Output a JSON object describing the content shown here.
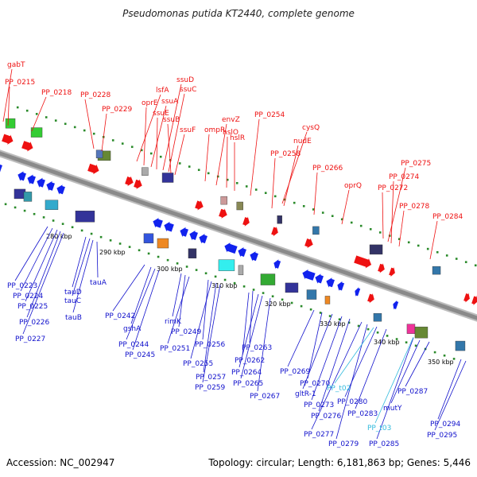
{
  "title": "Pseudomonas putida KT2440, complete genome",
  "footer": {
    "accession": "Accession: NC_002947",
    "topology": "Topology: circular; Length: 6,181,863 bp; Genes: 5,446"
  },
  "colors": {
    "label_top": "#ee1111",
    "label_bottom": "#1111cc",
    "label_alt": "#33bbdd",
    "forward_arrow": "#ee1111",
    "reverse_arrow": "#1122ee",
    "backbone": "#8a8a8a",
    "dot_track": "#2a8a2a"
  },
  "kbp_ticks": [
    "280 kbp",
    "290 kbp",
    "300 kbp",
    "310 kbp",
    "320 kbp",
    "330 kbp",
    "340 kbp",
    "350 kbp"
  ],
  "top_labels": [
    "gabT",
    "PP_0215",
    "PP_0218",
    "PP_0228",
    "PP_0229",
    "lsfA",
    "oprE",
    "ssuA",
    "ssuE",
    "ssuD",
    "ssuC",
    "ssuB",
    "ssuF",
    "ompR",
    "envZ",
    "hslO",
    "hslR",
    "PP_0254",
    "cysQ",
    "nudE",
    "PP_0258",
    "PP_0266",
    "oprQ",
    "PP_0272",
    "PP_0275",
    "PP_0274",
    "PP_0278",
    "PP_0284"
  ],
  "bottom_labels": [
    "PP_0223",
    "PP_0224",
    "PP_0225",
    "PP_0226",
    "PP_0227",
    "tauD",
    "tauC",
    "tauB",
    "tauA",
    "PP_0242",
    "gshA",
    "PP_0244",
    "PP_0245",
    "rimK",
    "PP_0249",
    "PP_0251",
    "PP_0256",
    "PP_0255",
    "PP_0257",
    "PP_0259",
    "PP_0263",
    "PP_0262",
    "PP_0264",
    "PP_0265",
    "PP_0267",
    "PP_0269",
    "PP_0270",
    "gltR-1",
    "PP_0273",
    "PP_0276",
    "PP_0277",
    "PP_0279",
    "PP_0280",
    "PP_0283",
    "PP_0285",
    "mutY",
    "PP_0287",
    "PP_0294",
    "PP_0295"
  ],
  "alt_labels": [
    "PP_t02",
    "PP_t03"
  ]
}
